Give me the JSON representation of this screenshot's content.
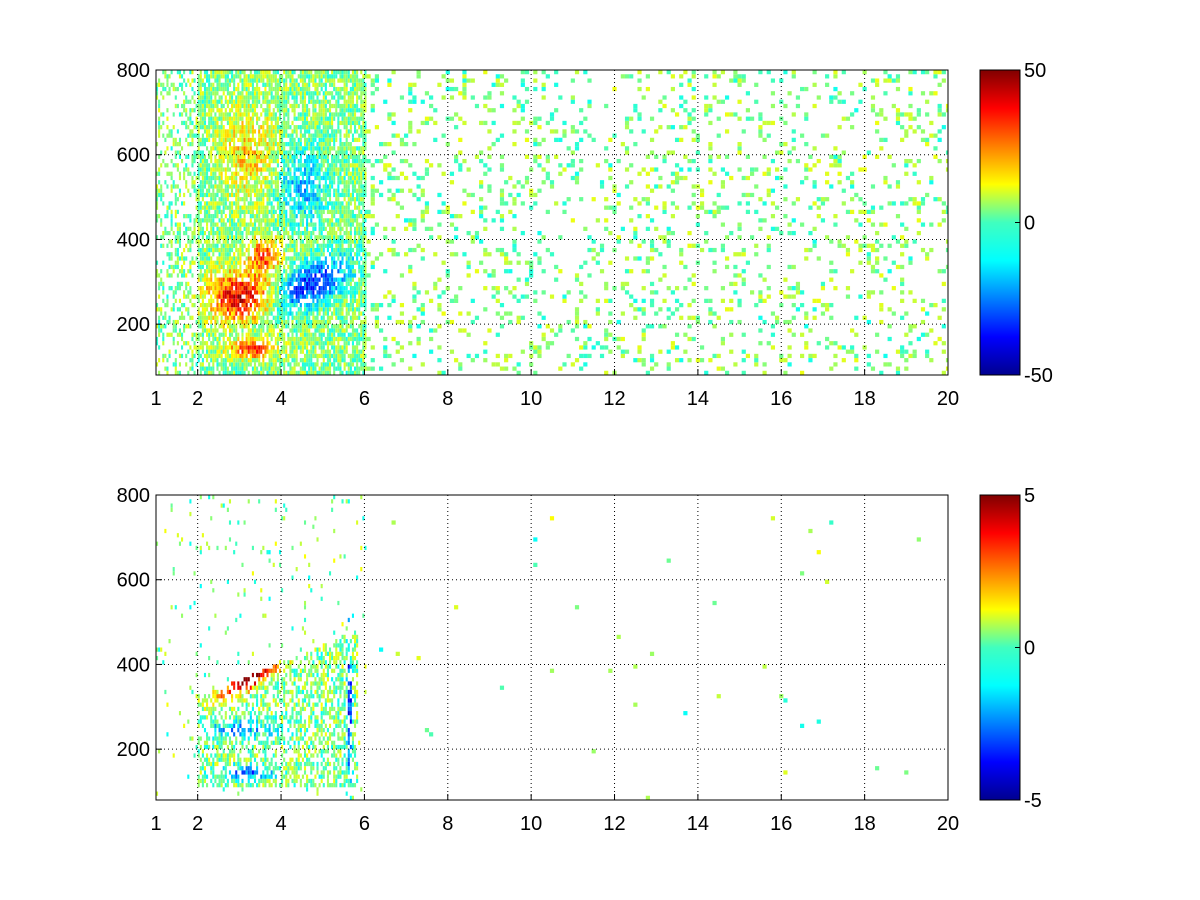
{
  "chart_data": [
    {
      "type": "heatmap",
      "title": "",
      "xlabel": "",
      "ylabel": "",
      "xlim": [
        1,
        20
      ],
      "ylim": [
        80,
        800
      ],
      "x_ticks": [
        1,
        2,
        4,
        6,
        8,
        10,
        12,
        14,
        16,
        18,
        20
      ],
      "y_ticks": [
        200,
        400,
        600,
        800
      ],
      "grid": true,
      "colormap": "jet",
      "clim": [
        -50,
        50
      ],
      "colorbar_ticks": [
        -50,
        0,
        50
      ],
      "colorbar_placement": "right",
      "description_of_values": [
        {
          "x_range": [
            2.2,
            3.8
          ],
          "y_range": [
            200,
            330
          ],
          "value_approx": 40
        },
        {
          "x_range": [
            3.8,
            5.8
          ],
          "y_range": [
            260,
            420
          ],
          "value_approx": -30
        },
        {
          "x_range": [
            2.5,
            4.0
          ],
          "y_range": [
            500,
            700
          ],
          "value_approx": 15
        },
        {
          "x_range": [
            2.5,
            4.0
          ],
          "y_range": [
            110,
            160
          ],
          "value_approx": 35
        },
        {
          "x_range": [
            6,
            20
          ],
          "y_range": [
            80,
            800
          ],
          "value_approx": 0
        }
      ]
    },
    {
      "type": "heatmap",
      "title": "",
      "xlabel": "",
      "ylabel": "",
      "xlim": [
        1,
        20
      ],
      "ylim": [
        80,
        800
      ],
      "x_ticks": [
        1,
        2,
        4,
        6,
        8,
        10,
        12,
        14,
        16,
        18,
        20
      ],
      "y_ticks": [
        200,
        400,
        600,
        800
      ],
      "grid": true,
      "colormap": "jet",
      "clim": [
        -5,
        5
      ],
      "colorbar_ticks": [
        -5,
        0,
        5
      ],
      "colorbar_placement": "right",
      "description_of_values": [
        {
          "x_range": [
            2.0,
            3.8
          ],
          "y_range": [
            290,
            420
          ],
          "value_approx": 5
        },
        {
          "x_range": [
            2.0,
            5.6
          ],
          "y_range": [
            200,
            350
          ],
          "value_approx": 0.5
        },
        {
          "x_range": [
            2.5,
            3.5
          ],
          "y_range": [
            120,
            160
          ],
          "value_approx": -3
        },
        {
          "x_range": [
            5.5,
            5.7
          ],
          "y_range": [
            80,
            560
          ],
          "value_approx": -4
        }
      ]
    }
  ]
}
